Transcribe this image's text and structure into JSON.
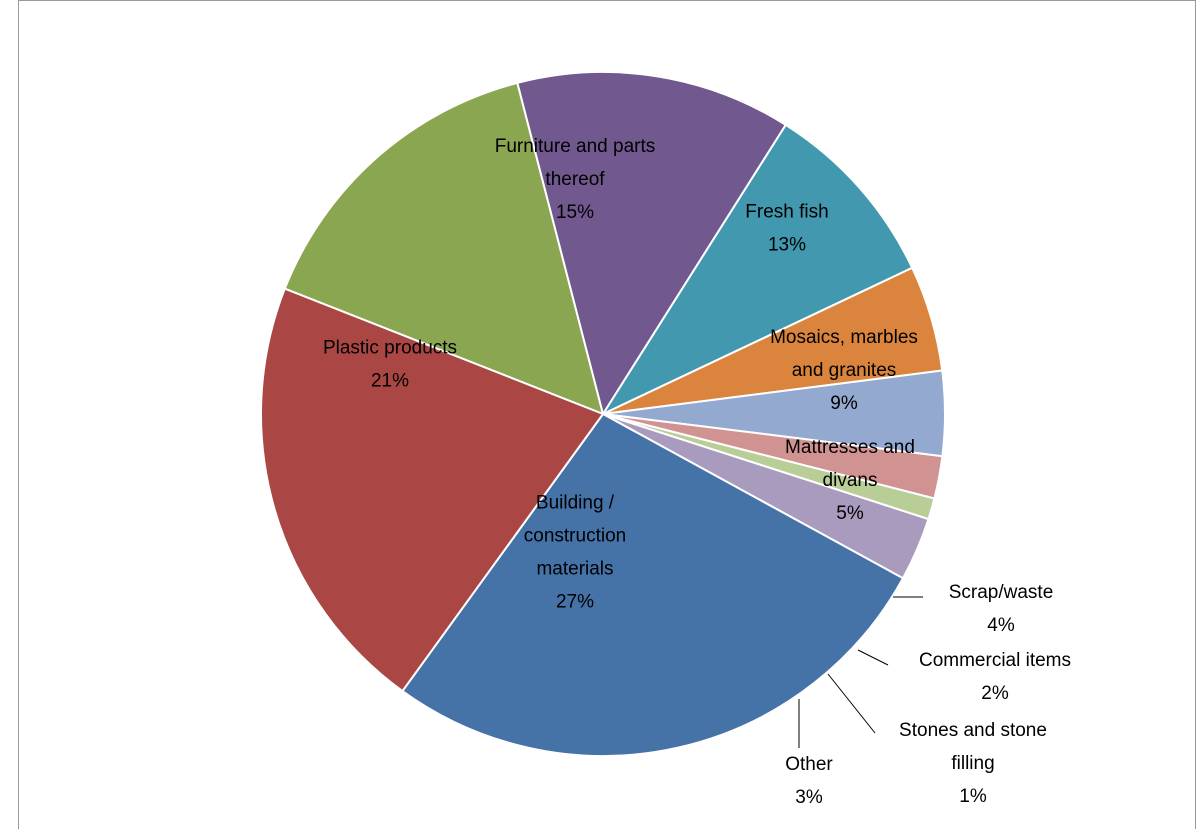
{
  "chart_data": {
    "type": "pie",
    "title": "",
    "slices": [
      {
        "label_lines": [
          "Furniture and parts",
          "thereof"
        ],
        "pct_label": "15%",
        "value": 15,
        "color": "#8BA650"
      },
      {
        "label_lines": [
          "Fresh fish"
        ],
        "pct_label": "13%",
        "value": 13,
        "color": "#71588F"
      },
      {
        "label_lines": [
          "Mosaics, marbles",
          "and granites"
        ],
        "pct_label": "9%",
        "value": 9,
        "color": "#4298AF"
      },
      {
        "label_lines": [
          "Mattresses and",
          "divans"
        ],
        "pct_label": "5%",
        "value": 5,
        "color": "#DB843D"
      },
      {
        "label_lines": [
          "Scrap/waste"
        ],
        "pct_label": "4%",
        "value": 4,
        "color": "#93A9CF"
      },
      {
        "label_lines": [
          "Commercial items"
        ],
        "pct_label": "2%",
        "value": 2,
        "color": "#D19392"
      },
      {
        "label_lines": [
          "Stones and stone",
          "filling"
        ],
        "pct_label": "1%",
        "value": 1,
        "color": "#B9CD96"
      },
      {
        "label_lines": [
          "Other"
        ],
        "pct_label": "3%",
        "value": 3,
        "color": "#A99BBD"
      },
      {
        "label_lines": [
          "Building /",
          "construction",
          "materials"
        ],
        "pct_label": "27%",
        "value": 27,
        "color": "#4572A7"
      },
      {
        "label_lines": [
          "Plastic products"
        ],
        "pct_label": "21%",
        "value": 21,
        "color": "#AA4643"
      }
    ]
  }
}
